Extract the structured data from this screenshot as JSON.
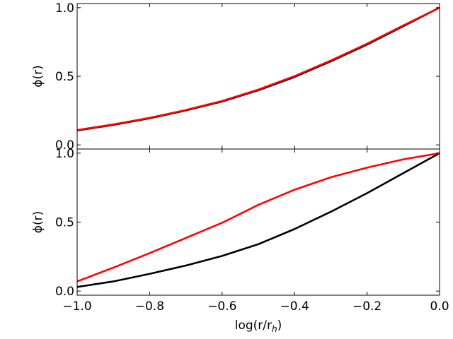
{
  "chart_data": [
    {
      "type": "line",
      "panel": "top",
      "xlabel": "",
      "ylabel": "ϕ(r)",
      "xlim": [
        -1.0,
        0.0
      ],
      "ylim": [
        -0.03,
        1.03
      ],
      "x_ticks": [
        -1.0,
        -0.8,
        -0.6,
        -0.4,
        -0.2,
        0.0
      ],
      "y_ticks": [
        0.0,
        0.5,
        1.0
      ],
      "y_tick_labels": [
        "0.0",
        "0.5",
        "1.0"
      ],
      "grid": false,
      "x": [
        -1.0,
        -0.9,
        -0.8,
        -0.7,
        -0.6,
        -0.5,
        -0.4,
        -0.3,
        -0.2,
        -0.1,
        0.0
      ],
      "series": [
        {
          "color": "#000000",
          "values": [
            0.105,
            0.146,
            0.194,
            0.251,
            0.316,
            0.398,
            0.495,
            0.609,
            0.731,
            0.865,
            1.0
          ]
        },
        {
          "color": "#ff0000",
          "values": [
            0.108,
            0.149,
            0.197,
            0.254,
            0.32,
            0.403,
            0.501,
            0.615,
            0.737,
            0.87,
            1.0
          ]
        }
      ]
    },
    {
      "type": "line",
      "panel": "bottom",
      "xlabel": "log(r/r",
      "xlabel_sub": "h",
      "xlabel_close": ")",
      "ylabel": "ϕ(r)",
      "xlim": [
        -1.0,
        0.0
      ],
      "ylim": [
        -0.03,
        1.03
      ],
      "x_ticks": [
        -1.0,
        -0.8,
        -0.6,
        -0.4,
        -0.2,
        0.0
      ],
      "x_tick_labels": [
        "−1.0",
        "−0.8",
        "−0.6",
        "−0.4",
        "−0.2",
        "0.0"
      ],
      "y_ticks": [
        0.0,
        0.5,
        1.0
      ],
      "y_tick_labels": [
        "0.0",
        "0.5",
        "1.0"
      ],
      "grid": false,
      "x": [
        -1.0,
        -0.9,
        -0.8,
        -0.7,
        -0.6,
        -0.5,
        -0.4,
        -0.3,
        -0.2,
        -0.1,
        0.0
      ],
      "series": [
        {
          "color": "#000000",
          "values": [
            0.03,
            0.07,
            0.125,
            0.185,
            0.255,
            0.34,
            0.45,
            0.575,
            0.71,
            0.855,
            1.0
          ]
        },
        {
          "color": "#ff0000",
          "values": [
            0.07,
            0.17,
            0.275,
            0.385,
            0.495,
            0.625,
            0.735,
            0.825,
            0.895,
            0.955,
            1.0
          ]
        }
      ]
    }
  ]
}
